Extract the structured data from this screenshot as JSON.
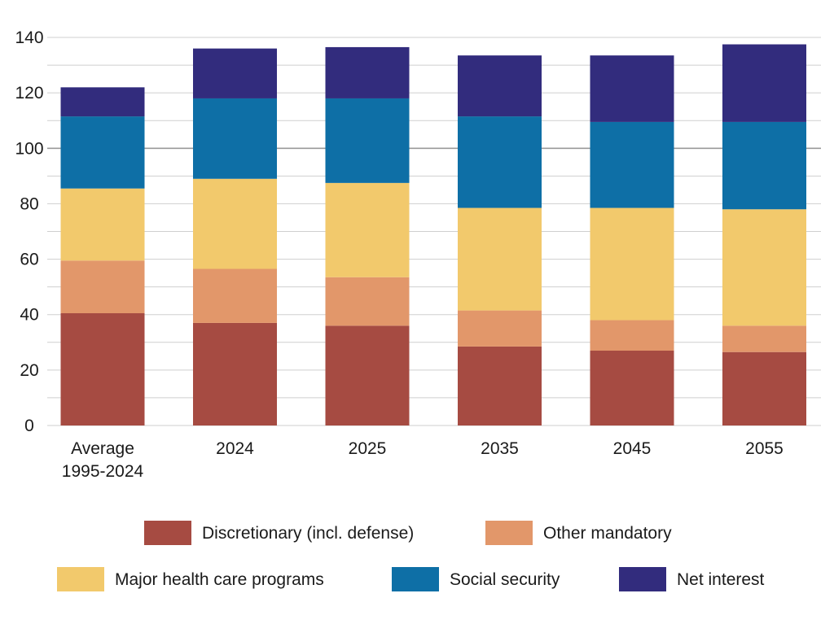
{
  "chart_data": {
    "type": "bar",
    "stacked": true,
    "title": "",
    "xlabel": "",
    "ylabel": "",
    "ylim": [
      0,
      140
    ],
    "yticks": [
      0,
      20,
      40,
      60,
      80,
      100,
      120,
      140
    ],
    "grid": true,
    "legend_position": "bottom",
    "categories": [
      [
        "Average",
        "1995-2024"
      ],
      [
        "2024"
      ],
      [
        "2025"
      ],
      [
        "2035"
      ],
      [
        "2045"
      ],
      [
        "2055"
      ]
    ],
    "series": [
      {
        "name": "Discretionary (incl. defense)",
        "color": "#a64b42",
        "values": [
          40.5,
          37,
          36,
          28.5,
          27,
          26.5
        ]
      },
      {
        "name": "Other mandatory",
        "color": "#e2976a",
        "values": [
          19,
          19.5,
          17.5,
          13,
          11,
          9.5
        ]
      },
      {
        "name": "Major health care programs",
        "color": "#f2c96c",
        "values": [
          26,
          32.5,
          34,
          37,
          40.5,
          42
        ]
      },
      {
        "name": "Social security",
        "color": "#0e6fa6",
        "values": [
          26,
          29,
          30.5,
          33,
          31,
          31.5
        ]
      },
      {
        "name": "Net interest",
        "color": "#322c7d",
        "values": [
          10.5,
          18,
          18.5,
          22,
          24,
          28
        ]
      }
    ],
    "legend_rows": [
      [
        0,
        1
      ],
      [
        2,
        3,
        4
      ]
    ]
  }
}
